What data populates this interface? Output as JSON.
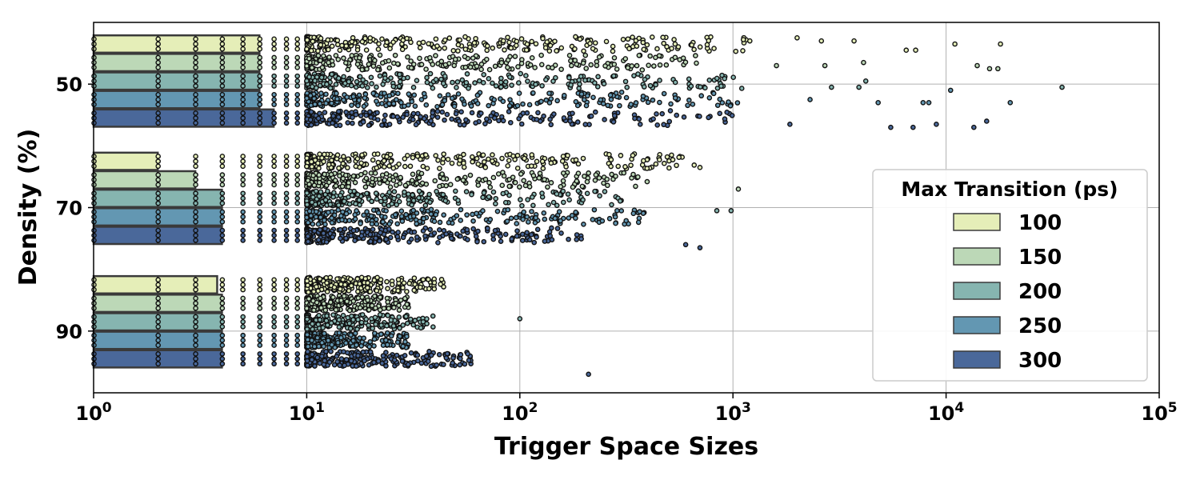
{
  "chart_data": {
    "type": "scatter",
    "title": "",
    "xlabel": "Trigger Space Sizes",
    "ylabel": "Density (%)",
    "x_scale": "log",
    "xlim": [
      1,
      100000
    ],
    "ylim": [
      100,
      40
    ],
    "y_inverted": true,
    "grid": true,
    "x_ticks": [
      {
        "base": "10",
        "exp": "0",
        "value": 1
      },
      {
        "base": "10",
        "exp": "1",
        "value": 10
      },
      {
        "base": "10",
        "exp": "2",
        "value": 100
      },
      {
        "base": "10",
        "exp": "3",
        "value": 1000
      },
      {
        "base": "10",
        "exp": "4",
        "value": 10000
      },
      {
        "base": "10",
        "exp": "5",
        "value": 100000
      }
    ],
    "y_ticks": [
      {
        "label": "50",
        "value": 50
      },
      {
        "label": "70",
        "value": 70
      },
      {
        "label": "90",
        "value": 90
      }
    ],
    "legend": {
      "title": "Max Transition (ps)",
      "position": "lower-right",
      "entries": [
        {
          "label": "100",
          "color": "#e5eeb8"
        },
        {
          "label": "150",
          "color": "#bcd8b7"
        },
        {
          "label": "200",
          "color": "#86b5b0"
        },
        {
          "label": "250",
          "color": "#6397b2"
        },
        {
          "label": "300",
          "color": "#4a689a"
        }
      ]
    },
    "series": [
      {
        "name": "100",
        "color": "#e5eeb8",
        "bars": [
          [
            43.5,
            6
          ],
          [
            62.5,
            2
          ],
          [
            82.5,
            3.8
          ]
        ]
      },
      {
        "name": "150",
        "color": "#bcd8b7",
        "bars": [
          [
            46.5,
            6
          ],
          [
            65.5,
            3
          ],
          [
            85.5,
            4
          ]
        ]
      },
      {
        "name": "200",
        "color": "#86b5b0",
        "bars": [
          [
            49.5,
            6
          ],
          [
            68.5,
            4
          ],
          [
            88.5,
            4
          ]
        ]
      },
      {
        "name": "250",
        "color": "#6397b2",
        "bars": [
          [
            52.5,
            6
          ],
          [
            71.5,
            4
          ],
          [
            91.5,
            4
          ]
        ]
      },
      {
        "name": "300",
        "color": "#4a689a",
        "bars": [
          [
            55.5,
            7
          ],
          [
            74.5,
            4
          ],
          [
            94.5,
            4
          ]
        ]
      }
    ],
    "bar_height": 2.8,
    "bar_start_x": 1,
    "outlier_points": [
      {
        "x": 1200,
        "y": 43,
        "series": "100"
      },
      {
        "x": 2000,
        "y": 42.5,
        "series": "100"
      },
      {
        "x": 2600,
        "y": 43,
        "series": "100"
      },
      {
        "x": 3700,
        "y": 43,
        "series": "100"
      },
      {
        "x": 11000,
        "y": 43.5,
        "series": "100"
      },
      {
        "x": 18000,
        "y": 43.5,
        "series": "100"
      },
      {
        "x": 6500,
        "y": 44.5,
        "series": "100"
      },
      {
        "x": 7200,
        "y": 44.5,
        "series": "100"
      },
      {
        "x": 2700,
        "y": 47,
        "series": "150"
      },
      {
        "x": 14000,
        "y": 47,
        "series": "150"
      },
      {
        "x": 16000,
        "y": 47.5,
        "series": "150"
      },
      {
        "x": 17500,
        "y": 47.5,
        "series": "150"
      },
      {
        "x": 1600,
        "y": 47,
        "series": "150"
      },
      {
        "x": 4100,
        "y": 46.5,
        "series": "150"
      },
      {
        "x": 35000,
        "y": 50.5,
        "series": "200"
      },
      {
        "x": 4200,
        "y": 49.5,
        "series": "200"
      },
      {
        "x": 2900,
        "y": 50.5,
        "series": "200"
      },
      {
        "x": 3900,
        "y": 50.5,
        "series": "200"
      },
      {
        "x": 20000,
        "y": 53,
        "series": "250"
      },
      {
        "x": 10500,
        "y": 51,
        "series": "250"
      },
      {
        "x": 7800,
        "y": 53,
        "series": "250"
      },
      {
        "x": 8300,
        "y": 53,
        "series": "250"
      },
      {
        "x": 4800,
        "y": 53,
        "series": "250"
      },
      {
        "x": 2300,
        "y": 52.5,
        "series": "250"
      },
      {
        "x": 15500,
        "y": 56,
        "series": "300"
      },
      {
        "x": 13500,
        "y": 57,
        "series": "300"
      },
      {
        "x": 9000,
        "y": 56.5,
        "series": "300"
      },
      {
        "x": 7000,
        "y": 57,
        "series": "300"
      },
      {
        "x": 5500,
        "y": 57,
        "series": "300"
      },
      {
        "x": 1850,
        "y": 56.5,
        "series": "300"
      },
      {
        "x": 980,
        "y": 70.5,
        "series": "200"
      },
      {
        "x": 840,
        "y": 70.5,
        "series": "200"
      },
      {
        "x": 1060,
        "y": 67,
        "series": "150"
      },
      {
        "x": 700,
        "y": 63.5,
        "series": "100"
      },
      {
        "x": 600,
        "y": 76,
        "series": "300"
      },
      {
        "x": 700,
        "y": 76.5,
        "series": "300"
      },
      {
        "x": 210,
        "y": 97,
        "series": "300"
      },
      {
        "x": 100,
        "y": 88,
        "series": "200"
      }
    ]
  }
}
